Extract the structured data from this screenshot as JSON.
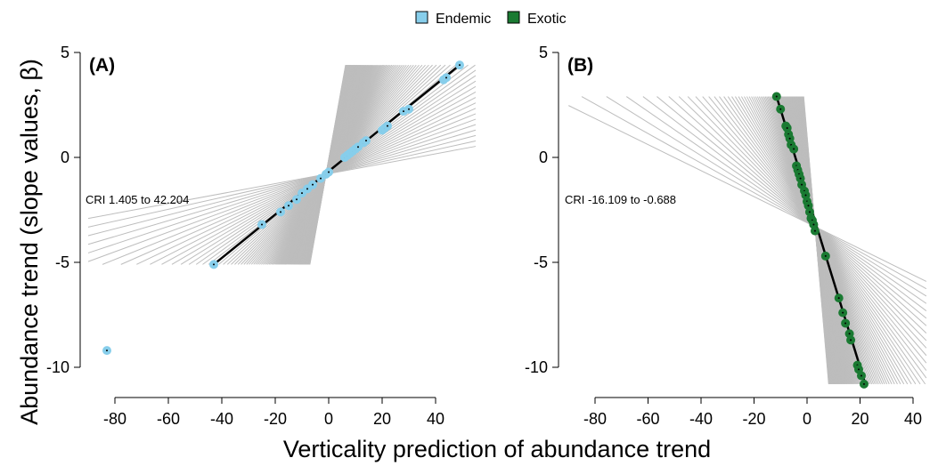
{
  "figure": {
    "y_title": "Abundance trend (slope values, β)",
    "x_title": "Verticality prediction of abundance trend"
  },
  "legend": [
    {
      "label": "Endemic",
      "color": "#87ceeb"
    },
    {
      "label": "Exotic",
      "color": "#1a7a32"
    }
  ],
  "colors": {
    "ribbon": "#bdbdbd",
    "fit": "#000000"
  },
  "chart_data": [
    {
      "panel_label": "(A)",
      "type": "scatter",
      "series_label": "Endemic",
      "color": "#87ceeb",
      "annotation": "CRI 1.405 to 42.204",
      "xlim": [
        -90,
        55
      ],
      "ylim": [
        -11.5,
        5
      ],
      "xticks": [
        -80,
        -60,
        -40,
        -20,
        0,
        20,
        40
      ],
      "yticks": [
        5,
        0,
        -5,
        -10
      ],
      "ytick_labels": [
        "5",
        "0",
        "-5",
        "-10"
      ],
      "fit_line": {
        "x": [
          -43,
          49
        ],
        "y": [
          -5.1,
          4.4
        ]
      },
      "cri_slope": [
        1.405,
        42.204
      ],
      "points": [
        [
          -83,
          -9.2
        ],
        [
          -43,
          -5.1
        ],
        [
          -25,
          -3.2
        ],
        [
          -18,
          -2.6
        ],
        [
          -15,
          -2.3
        ],
        [
          -12,
          -2.0
        ],
        [
          -10,
          -1.7
        ],
        [
          -8,
          -1.5
        ],
        [
          -6,
          -1.3
        ],
        [
          -3,
          -1.0
        ],
        [
          -1,
          -0.8
        ],
        [
          0,
          -0.7
        ],
        [
          6,
          0.0
        ],
        [
          7,
          0.1
        ],
        [
          8,
          0.2
        ],
        [
          9,
          0.3
        ],
        [
          10,
          0.4
        ],
        [
          11,
          0.5
        ],
        [
          13,
          0.7
        ],
        [
          14,
          0.8
        ],
        [
          20,
          1.3
        ],
        [
          21,
          1.4
        ],
        [
          22,
          1.5
        ],
        [
          28,
          2.2
        ],
        [
          30,
          2.3
        ],
        [
          43,
          3.7
        ],
        [
          44,
          3.8
        ],
        [
          49,
          4.4
        ]
      ],
      "ribbon_lines": 130
    },
    {
      "panel_label": "(B)",
      "type": "scatter",
      "series_label": "Exotic",
      "color": "#1a7a32",
      "annotation": "CRI -16.109 to -0.688",
      "xlim": [
        -90,
        45
      ],
      "ylim": [
        -11.5,
        5
      ],
      "xticks": [
        -80,
        -60,
        -40,
        -20,
        0,
        20,
        40
      ],
      "yticks": [
        5,
        0,
        -5,
        -10
      ],
      "ytick_labels": [
        "5",
        "0",
        "-5",
        "-10"
      ],
      "fit_line": {
        "x": [
          -11.5,
          22
        ],
        "y": [
          2.9,
          -10.8
        ]
      },
      "cri_slope": [
        -16.109,
        -0.688
      ],
      "points": [
        [
          -11.5,
          2.9
        ],
        [
          -10,
          2.3
        ],
        [
          -8,
          1.5
        ],
        [
          -7.5,
          1.4
        ],
        [
          -7,
          1.1
        ],
        [
          -6.5,
          0.9
        ],
        [
          -6,
          0.6
        ],
        [
          -5,
          0.4
        ],
        [
          -4,
          -0.4
        ],
        [
          -3.5,
          -0.6
        ],
        [
          -3,
          -0.8
        ],
        [
          -2.5,
          -1.0
        ],
        [
          -2,
          -1.3
        ],
        [
          -1,
          -1.6
        ],
        [
          -0.5,
          -1.8
        ],
        [
          0,
          -2.1
        ],
        [
          0.5,
          -2.3
        ],
        [
          1,
          -2.6
        ],
        [
          1.5,
          -2.9
        ],
        [
          2,
          -3.0
        ],
        [
          2.5,
          -3.2
        ],
        [
          3,
          -3.5
        ],
        [
          7,
          -4.7
        ],
        [
          12,
          -6.7
        ],
        [
          13.5,
          -7.4
        ],
        [
          14.5,
          -7.9
        ],
        [
          16,
          -8.4
        ],
        [
          16.5,
          -8.7
        ],
        [
          19,
          -9.9
        ],
        [
          19.5,
          -10.1
        ],
        [
          20.5,
          -10.4
        ],
        [
          21.5,
          -10.8
        ]
      ],
      "ribbon_lines": 110
    }
  ]
}
